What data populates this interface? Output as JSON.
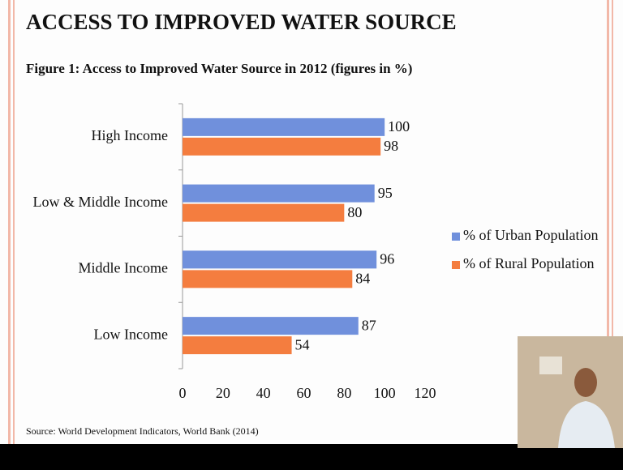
{
  "heading": "ACCESS TO IMPROVED WATER SOURCE",
  "chart_data": {
    "type": "bar",
    "orientation": "horizontal",
    "title": "Figure 1: Access to Improved Water Source in 2012 (figures in %)",
    "categories": [
      "High Income",
      "Low & Middle Income",
      "Middle Income",
      "Low Income"
    ],
    "series": [
      {
        "name": "% of Urban Population",
        "color": "#7090dc",
        "values": [
          100,
          95,
          96,
          87
        ]
      },
      {
        "name": "% of Rural Population",
        "color": "#f47d3f",
        "values": [
          98,
          80,
          84,
          54
        ]
      }
    ],
    "xlim": [
      0,
      120
    ],
    "xticks": [
      0,
      20,
      40,
      60,
      80,
      100,
      120
    ],
    "legend": "right",
    "source": "Source: World Development Indicators, World Bank (2014)"
  }
}
